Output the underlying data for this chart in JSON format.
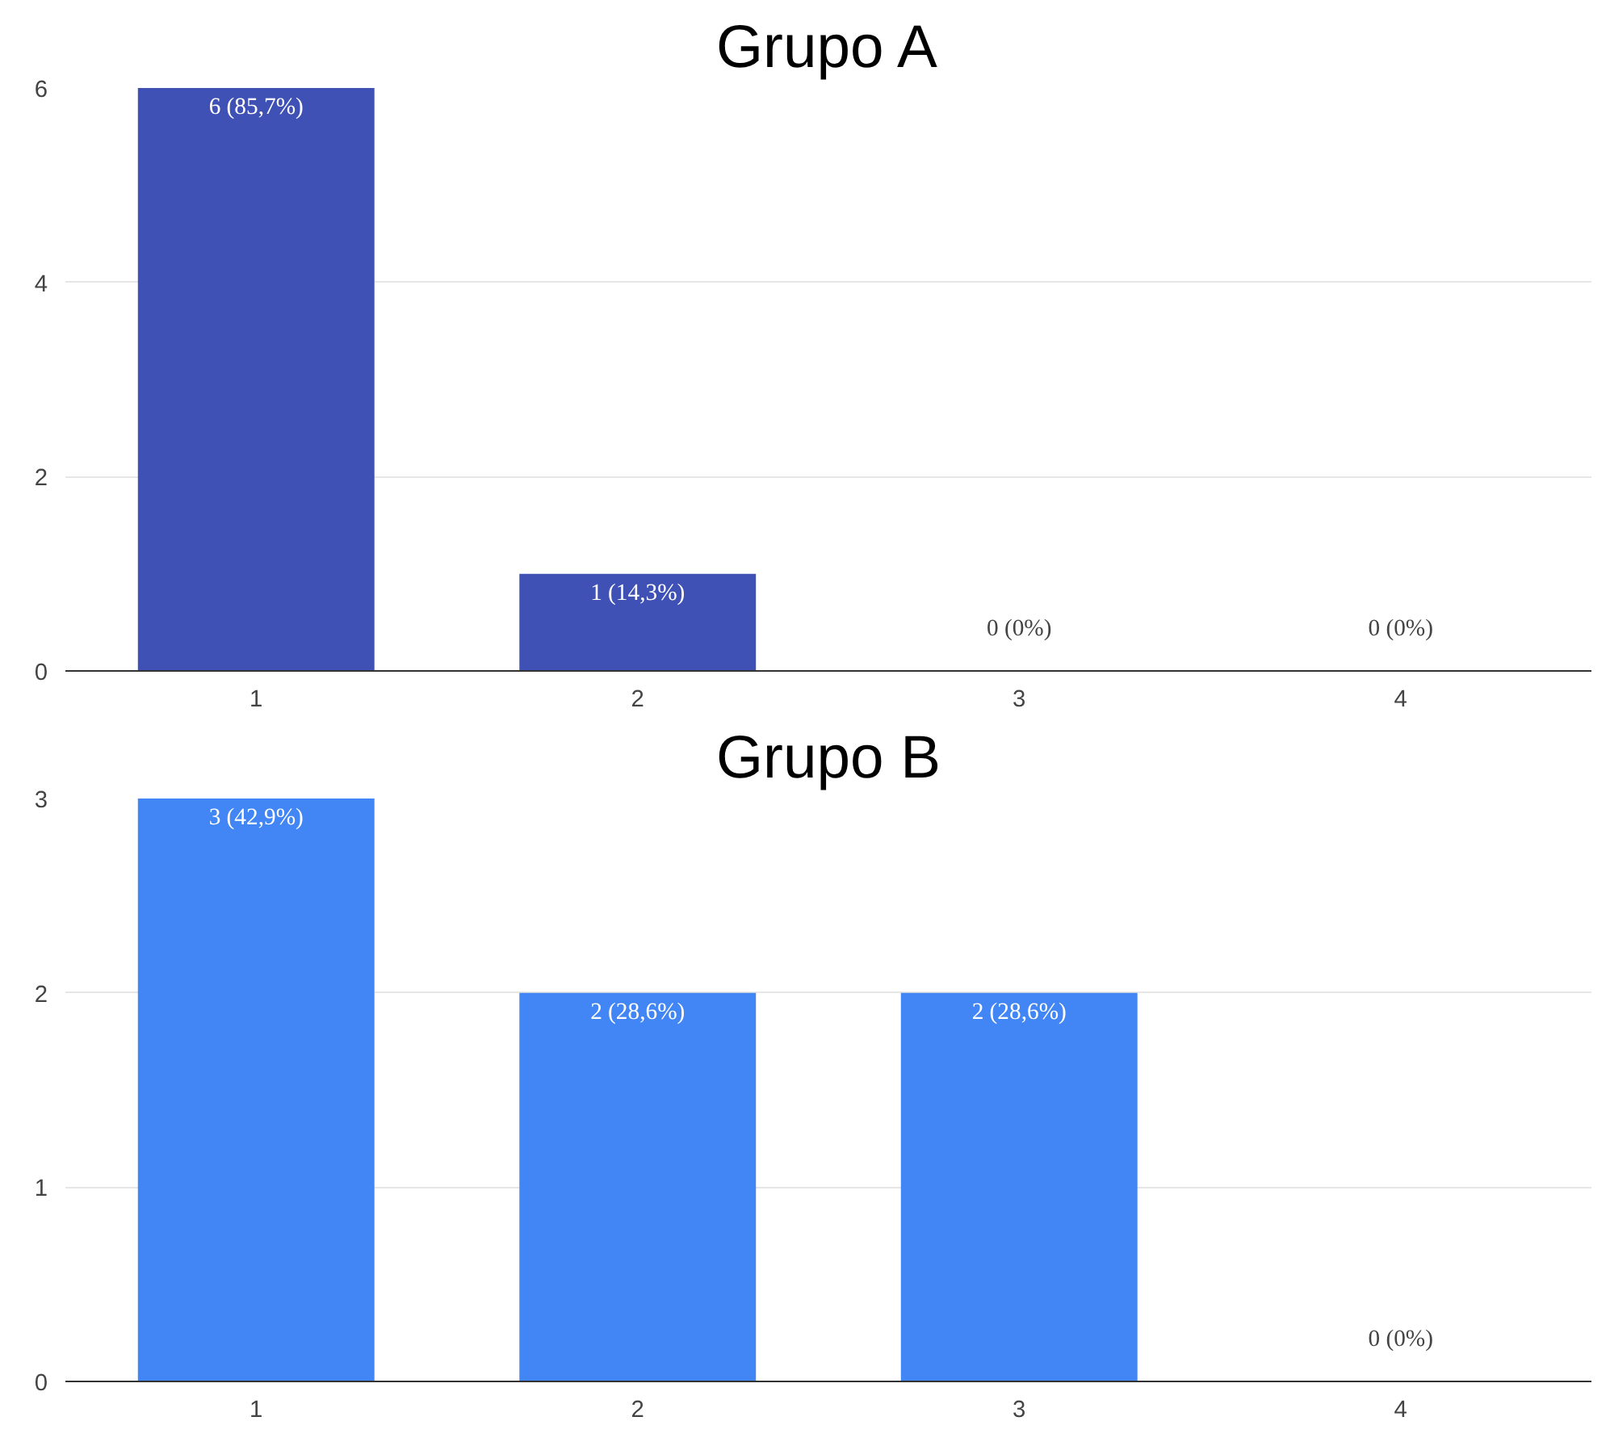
{
  "chart_data": [
    {
      "type": "bar",
      "title": "Grupo A",
      "categories": [
        "1",
        "2",
        "3",
        "4"
      ],
      "values": [
        6,
        1,
        0,
        0
      ],
      "value_labels": [
        "6 (85,7%)",
        "1 (14,3%)",
        "0 (0%)",
        "0 (0%)"
      ],
      "color": "#3f51b5",
      "ylim": [
        0,
        6
      ],
      "yticks": [
        0,
        2,
        4,
        6
      ],
      "grid": "y"
    },
    {
      "type": "bar",
      "title": "Grupo B",
      "categories": [
        "1",
        "2",
        "3",
        "4"
      ],
      "values": [
        3,
        2,
        2,
        0
      ],
      "value_labels": [
        "3 (42,9%)",
        "2 (28,6%)",
        "2 (28,6%)",
        "0 (0%)"
      ],
      "color": "#4285f4",
      "ylim": [
        0,
        3
      ],
      "yticks": [
        0,
        1,
        2,
        3
      ],
      "grid": "y"
    }
  ]
}
